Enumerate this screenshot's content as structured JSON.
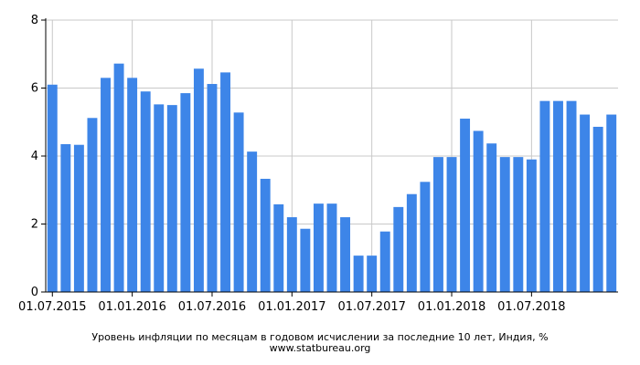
{
  "caption": {
    "title": "Уровень инфляции по месяцам в годовом исчислении за последние 10 лет, Индия, %",
    "source": "www.statbureau.org"
  },
  "colors": {
    "bar": "#3d85e8",
    "grid": "#c8c8c8",
    "axis": "#000000"
  },
  "chart_data": {
    "type": "bar",
    "x_tick_labels": [
      "01.07.2015",
      "01.01.2016",
      "01.07.2016",
      "01.01.2017",
      "01.07.2017",
      "01.01.2018",
      "01.07.2018"
    ],
    "categories": [
      "07.2015",
      "08.2015",
      "09.2015",
      "10.2015",
      "11.2015",
      "12.2015",
      "01.2016",
      "02.2016",
      "03.2016",
      "04.2016",
      "05.2016",
      "06.2016",
      "07.2016",
      "08.2016",
      "09.2016",
      "10.2016",
      "11.2016",
      "12.2016",
      "01.2017",
      "02.2017",
      "03.2017",
      "04.2017",
      "05.2017",
      "06.2017",
      "07.2017",
      "08.2017",
      "09.2017",
      "10.2017",
      "11.2017",
      "12.2017",
      "01.2018",
      "02.2018",
      "03.2018",
      "04.2018",
      "05.2018",
      "06.2018",
      "07.2018",
      "08.2018",
      "09.2018",
      "10.2018",
      "11.2018",
      "12.2018",
      "01.2019"
    ],
    "values": [
      6.1,
      4.35,
      4.33,
      5.12,
      6.3,
      6.72,
      6.3,
      5.9,
      5.52,
      5.5,
      5.85,
      6.57,
      6.12,
      6.46,
      5.28,
      4.13,
      3.33,
      2.58,
      2.2,
      1.86,
      2.6,
      2.6,
      2.2,
      1.07,
      1.07,
      1.78,
      2.5,
      2.88,
      3.24,
      3.97,
      3.97,
      5.1,
      4.74,
      4.37,
      3.97,
      3.97,
      3.9,
      5.62,
      5.62,
      5.62,
      5.22,
      4.86,
      5.22
    ],
    "ylim": [
      0,
      8
    ],
    "yticks": [
      0,
      2,
      4,
      6,
      8
    ],
    "grid": true
  }
}
